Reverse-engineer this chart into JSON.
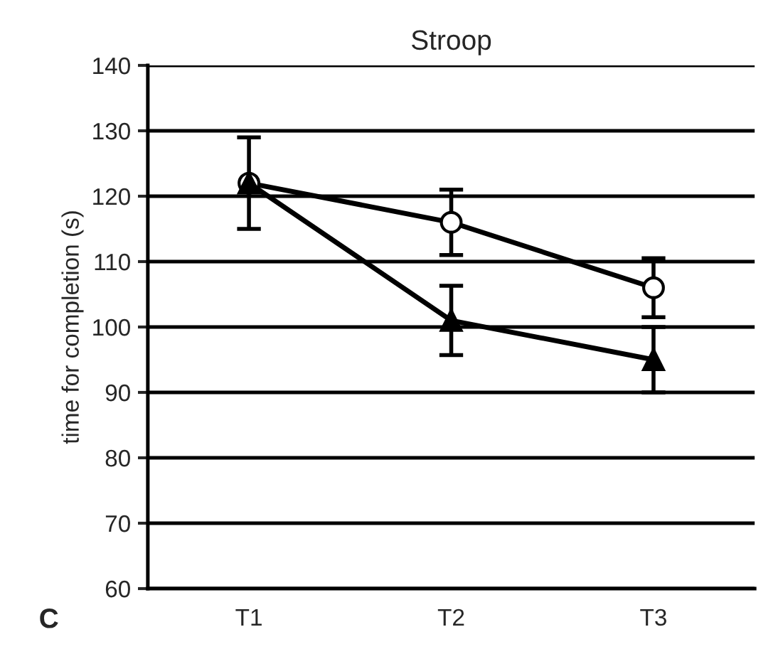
{
  "chart_data": {
    "type": "line",
    "title": "Stroop",
    "ylabel": "time for completion (s)",
    "categories": [
      "T1",
      "T2",
      "T3"
    ],
    "series": [
      {
        "color": "#000000",
        "marker": "circle",
        "values": [
          122,
          116,
          106
        ],
        "errors": [
          7,
          5,
          4.5
        ]
      },
      {
        "color": "#000000",
        "marker": "triangle",
        "values": [
          122,
          101,
          95
        ],
        "errors": [
          null,
          5.3,
          5
        ]
      }
    ],
    "ylim": [
      60,
      140
    ],
    "yticks": [
      60,
      70,
      80,
      90,
      100,
      110,
      120,
      130,
      140
    ],
    "grid": "y",
    "legend": false,
    "annotations": [
      "C"
    ]
  }
}
